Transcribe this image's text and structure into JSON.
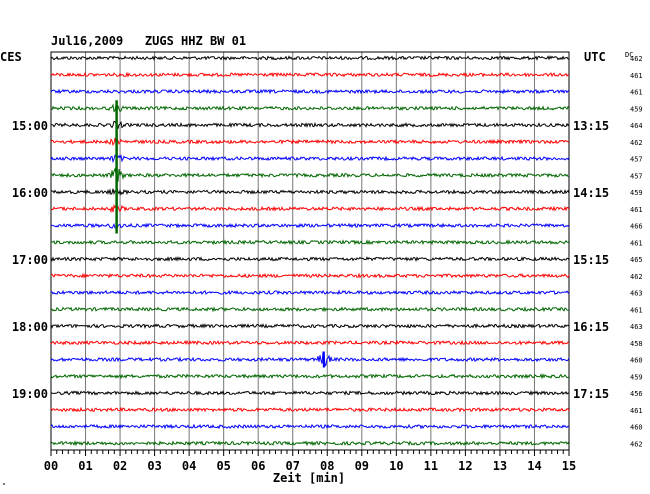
{
  "header": {
    "title": "Jul16,2009   ZUGS HHZ BW 01",
    "left_zone": "CES",
    "right_zone": "UTC",
    "dc_label": "DC"
  },
  "chart_data": {
    "type": "line",
    "title": "Jul16,2009   ZUGS HHZ BW 01",
    "xlabel": "Zeit [min]",
    "xlim": [
      0,
      15
    ],
    "x_ticks": [
      "00",
      "01",
      "02",
      "03",
      "04",
      "05",
      "06",
      "07",
      "08",
      "09",
      "10",
      "11",
      "12",
      "13",
      "14",
      "15"
    ],
    "trace_colors": [
      "#000000",
      "#ff0000",
      "#0000ff",
      "#006600"
    ],
    "trace_count": 24,
    "trace_minutes": 15,
    "left_time_labels": [
      {
        "trace": 4,
        "text": "15:00"
      },
      {
        "trace": 8,
        "text": "16:00"
      },
      {
        "trace": 12,
        "text": "17:00"
      },
      {
        "trace": 16,
        "text": "18:00"
      },
      {
        "trace": 20,
        "text": "19:00"
      }
    ],
    "right_time_labels": [
      {
        "trace": 4,
        "text": "13:15"
      },
      {
        "trace": 8,
        "text": "14:15"
      },
      {
        "trace": 12,
        "text": "15:15"
      },
      {
        "trace": 16,
        "text": "16:15"
      },
      {
        "trace": 20,
        "text": "17:15"
      }
    ],
    "dc_values": [
      "462",
      "461",
      "461",
      "459",
      "464",
      "462",
      "457",
      "457",
      "459",
      "461",
      "466",
      "461",
      "465",
      "462",
      "463",
      "461",
      "463",
      "458",
      "460",
      "459",
      "456",
      "461",
      "460",
      "462"
    ],
    "events": [
      {
        "minute": 1.9,
        "trace_start": 3,
        "trace_end": 10,
        "peak_trace": 7,
        "color": "#006600"
      },
      {
        "minute": 7.9,
        "trace_start": 18,
        "trace_end": 18,
        "peak_trace": 18,
        "color": "#0000ff"
      }
    ]
  },
  "footer_mark": "\""
}
